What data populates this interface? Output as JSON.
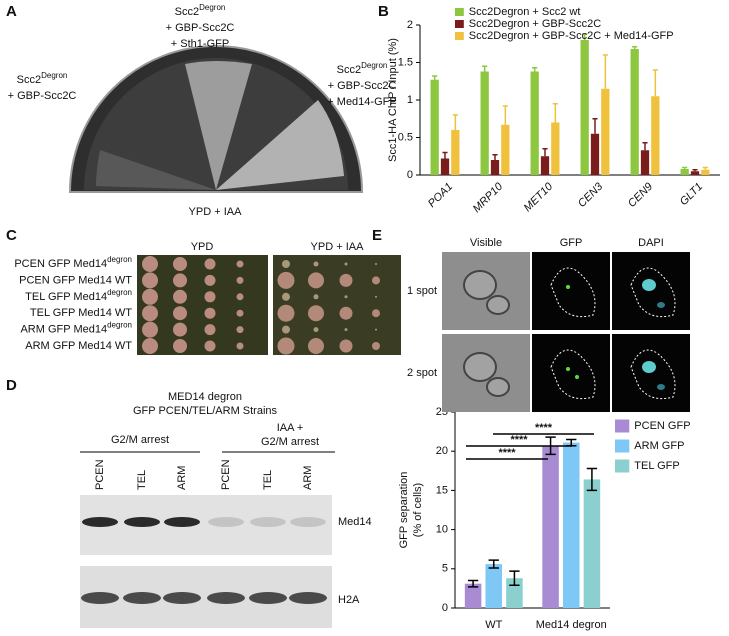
{
  "panel_labels": [
    "A",
    "B",
    "C",
    "D",
    "E"
  ],
  "panel_a": {
    "strain_left": {
      "name": {
        "base": "Scc2",
        "sup": "Degron"
      },
      "lines": [
        "+ GBP-Scc2C"
      ]
    },
    "strain_top": {
      "name": {
        "base": "Scc2",
        "sup": "Degron"
      },
      "lines": [
        "+ GBP-Scc2C",
        "+ Sth1-GFP"
      ]
    },
    "strain_right": {
      "name": {
        "base": "Scc2",
        "sup": "Degron"
      },
      "lines": [
        "+ GBP-Scc2C",
        "+ Med14-GFP"
      ]
    },
    "medium": "YPD + IAA"
  },
  "chart_data": [
    {
      "type": "bar",
      "y_label": "Scc1-HA ChIP / Input (%)",
      "categories": [
        "POA1",
        "MRP10",
        "MET10",
        "CEN3",
        "CEN9",
        "GLT1"
      ],
      "series": [
        {
          "name": "Scc2Degron + Scc2 wt",
          "color": "#8dc63f",
          "values": [
            1.27,
            1.38,
            1.38,
            1.8,
            1.68,
            0.08
          ],
          "errors": [
            0.05,
            0.07,
            0.05,
            0.08,
            0.03,
            0.02
          ]
        },
        {
          "name": "Scc2Degron + GBP-Scc2C",
          "color": "#7b1c1c",
          "values": [
            0.22,
            0.2,
            0.25,
            0.55,
            0.33,
            0.05
          ],
          "errors": [
            0.08,
            0.07,
            0.1,
            0.2,
            0.1,
            0.02
          ]
        },
        {
          "name": "Scc2Degron + GBP-Scc2C + Med14-GFP",
          "color": "#f0c13c",
          "values": [
            0.6,
            0.67,
            0.7,
            1.15,
            1.05,
            0.07
          ],
          "errors": [
            0.2,
            0.25,
            0.25,
            0.45,
            0.35,
            0.03
          ]
        }
      ],
      "ylim": [
        0,
        2
      ],
      "yticks": [
        0,
        0.5,
        1,
        1.5,
        2
      ]
    },
    {
      "type": "bar",
      "y_label": [
        "GFP separation",
        "(% of cells)"
      ],
      "categories": [
        "WT",
        "Med14 degron"
      ],
      "series": [
        {
          "name": "PCEN GFP",
          "color": "#a98bd4",
          "values": [
            3.1,
            20.7
          ],
          "errors": [
            0.4,
            1.1
          ]
        },
        {
          "name": "ARM GFP",
          "color": "#7fc8f5",
          "values": [
            5.6,
            21.1
          ],
          "errors": [
            0.5,
            0.4
          ]
        },
        {
          "name": "TEL  GFP",
          "color": "#8ccfcf",
          "values": [
            3.8,
            16.4
          ],
          "errors": [
            0.9,
            1.4
          ]
        }
      ],
      "ylim": [
        0,
        25
      ],
      "yticks": [
        0,
        5,
        10,
        15,
        20,
        25
      ],
      "annotations": [
        "****",
        "****",
        "****"
      ]
    }
  ],
  "panel_c": {
    "columns": [
      "YPD",
      "YPD + IAA"
    ],
    "rows": [
      {
        "text": "PCEN GFP Med14",
        "sup": "degron"
      },
      {
        "text": "PCEN GFP Med14 WT"
      },
      {
        "text": "TEL GFP Med14",
        "sup": "degron"
      },
      {
        "text": "TEL GFP Med14 WT"
      },
      {
        "text": "ARM GFP Med14",
        "sup": "degron"
      },
      {
        "text": "ARM GFP Med14 WT"
      }
    ]
  },
  "panel_d": {
    "title": [
      "MED14 degron",
      "GFP PCEN/TEL/ARM Strains"
    ],
    "groups": [
      [
        "G2/M arrest"
      ],
      [
        "IAA +",
        "G2/M arrest"
      ]
    ],
    "lanes": [
      "PCEN",
      "TEL",
      "ARM",
      "PCEN",
      "TEL",
      "ARM"
    ],
    "blots": [
      "Med14",
      "H2A"
    ]
  },
  "panel_e": {
    "columns": [
      "Visible",
      "GFP",
      "DAPI"
    ],
    "rows": [
      "1 spot",
      "2 spot"
    ]
  }
}
